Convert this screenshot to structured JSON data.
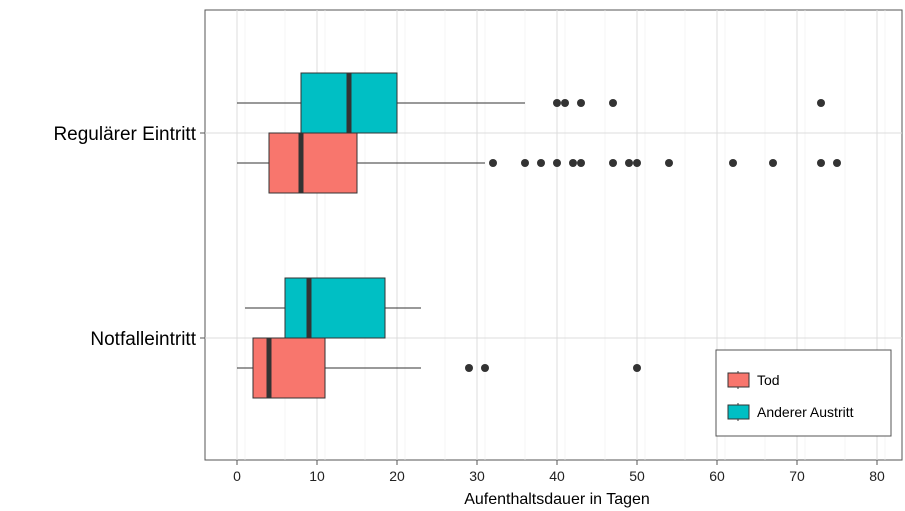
{
  "chart_data": {
    "type": "boxplot",
    "orientation": "horizontal",
    "xlabel": "Aufenthaltsdauer in Tagen",
    "ylabel": "",
    "xlim": [
      -4,
      83
    ],
    "x_ticks": [
      0,
      10,
      20,
      30,
      40,
      50,
      60,
      70,
      80
    ],
    "grid": true,
    "legend_position": "bottom-right inside",
    "categories": [
      "Regulärer Eintritt",
      "Notfalleintritt"
    ],
    "series": [
      {
        "name": "Tod",
        "color": "#F8766D",
        "boxes": [
          {
            "category": "Regulärer Eintritt",
            "whisker_low": 0,
            "q1": 4,
            "median": 8,
            "q3": 15,
            "whisker_high": 31,
            "outliers": [
              32,
              36,
              38,
              40,
              42,
              43,
              47,
              49,
              50,
              54,
              62,
              67,
              73,
              75
            ]
          },
          {
            "category": "Notfalleintritt",
            "whisker_low": 0,
            "q1": 2,
            "median": 4,
            "q3": 11,
            "whisker_high": 23,
            "outliers": [
              29,
              31,
              50
            ]
          }
        ]
      },
      {
        "name": "Anderer Austritt",
        "color": "#00BFC4",
        "boxes": [
          {
            "category": "Regulärer Eintritt",
            "whisker_low": 0,
            "q1": 8,
            "median": 14,
            "q3": 20,
            "whisker_high": 36,
            "outliers": [
              40,
              41,
              43,
              47,
              73
            ]
          },
          {
            "category": "Notfalleintritt",
            "whisker_low": 1,
            "q1": 6,
            "median": 9,
            "q3": 18.5,
            "whisker_high": 23,
            "outliers": []
          }
        ]
      }
    ]
  }
}
